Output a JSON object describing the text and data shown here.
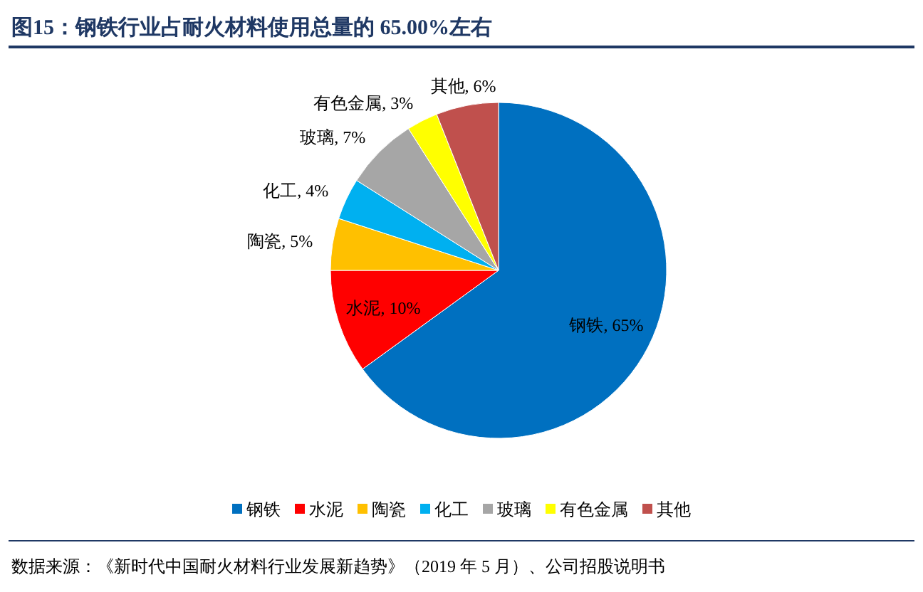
{
  "chart_data": {
    "type": "pie",
    "title": "图15：钢铁行业占耐火材料使用总量的 65.00%左右",
    "categories": [
      "钢铁",
      "水泥",
      "陶瓷",
      "化工",
      "玻璃",
      "有色金属",
      "其他"
    ],
    "values": [
      65,
      10,
      5,
      4,
      7,
      3,
      6
    ],
    "colors": [
      "#0070c0",
      "#ff0000",
      "#ffc000",
      "#00b0f0",
      "#a6a6a6",
      "#ffff00",
      "#c0504d"
    ],
    "value_labels": [
      "钢铁, 65%",
      "水泥, 10%",
      "陶瓷, 5%",
      "化工, 4%",
      "玻璃, 7%",
      "有色金属, 3%",
      "其他, 6%"
    ],
    "legend": "bottom",
    "annotations": [
      "数据来源：《新时代中国耐火材料行业发展新趋势》（2019 年 5 月）、公司招股说明书"
    ]
  }
}
